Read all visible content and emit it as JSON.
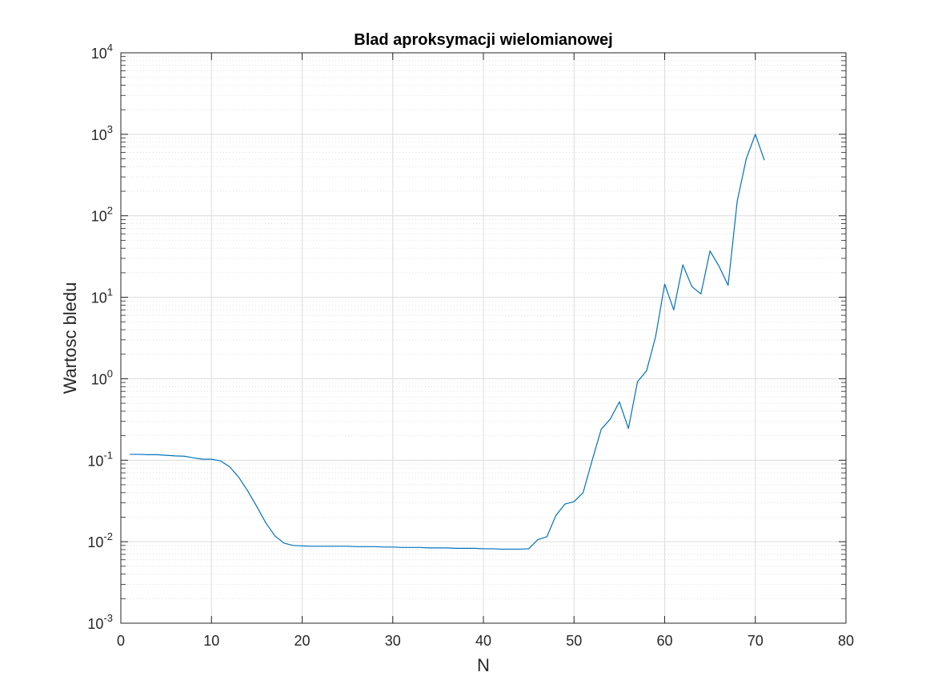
{
  "chart_data": {
    "type": "line",
    "title": "Blad aproksymacji wielomianowej",
    "xlabel": "N",
    "ylabel": "Wartosc bledu",
    "xlim": [
      0,
      80
    ],
    "ylim": [
      0.001,
      10000
    ],
    "yscale": "log",
    "grid": true,
    "minor_grid": true,
    "line_color": "#0072BD",
    "x_ticks": [
      {
        "value": 0,
        "label": "0"
      },
      {
        "value": 10,
        "label": "10"
      },
      {
        "value": 20,
        "label": "20"
      },
      {
        "value": 30,
        "label": "30"
      },
      {
        "value": 40,
        "label": "40"
      },
      {
        "value": 50,
        "label": "50"
      },
      {
        "value": 60,
        "label": "60"
      },
      {
        "value": 70,
        "label": "70"
      },
      {
        "value": 80,
        "label": "80"
      }
    ],
    "y_ticks": [
      {
        "value": 0.001,
        "base": "10",
        "exp": "-3"
      },
      {
        "value": 0.01,
        "base": "10",
        "exp": "-2"
      },
      {
        "value": 0.1,
        "base": "10",
        "exp": "-1"
      },
      {
        "value": 1,
        "base": "10",
        "exp": "0"
      },
      {
        "value": 10,
        "base": "10",
        "exp": "1"
      },
      {
        "value": 100,
        "base": "10",
        "exp": "2"
      },
      {
        "value": 1000,
        "base": "10",
        "exp": "3"
      },
      {
        "value": 10000,
        "base": "10",
        "exp": "4"
      }
    ],
    "series": [
      {
        "x": [
          1,
          2,
          3,
          4,
          5,
          6,
          7,
          8,
          9,
          10,
          11,
          12,
          13,
          14,
          15,
          16,
          17,
          18,
          19,
          20,
          21,
          22,
          23,
          24,
          25,
          26,
          27,
          28,
          29,
          30,
          31,
          32,
          33,
          34,
          35,
          36,
          37,
          38,
          39,
          40,
          41,
          42,
          43,
          44,
          45,
          46,
          47,
          48,
          49,
          50,
          51,
          52,
          53,
          54,
          55,
          56,
          57,
          58,
          59,
          60,
          61,
          62,
          63,
          64,
          65,
          66,
          67,
          68,
          69,
          70,
          71
        ],
        "y": [
          0.118,
          0.118,
          0.117,
          0.117,
          0.115,
          0.113,
          0.112,
          0.107,
          0.103,
          0.103,
          0.098,
          0.083,
          0.062,
          0.042,
          0.027,
          0.017,
          0.0118,
          0.0096,
          0.009,
          0.0089,
          0.0088,
          0.0088,
          0.0088,
          0.0088,
          0.0088,
          0.0087,
          0.0087,
          0.0087,
          0.0086,
          0.0086,
          0.0085,
          0.0085,
          0.0085,
          0.0084,
          0.0084,
          0.0084,
          0.0083,
          0.0083,
          0.0083,
          0.0082,
          0.0082,
          0.0081,
          0.0081,
          0.0081,
          0.0082,
          0.0106,
          0.0115,
          0.021,
          0.029,
          0.031,
          0.04,
          0.1,
          0.24,
          0.32,
          0.52,
          0.245,
          0.92,
          1.25,
          3.3,
          14.5,
          7.0,
          25.0,
          13.5,
          11.0,
          37.0,
          24.0,
          14.0,
          150.0,
          500.0,
          1000.0,
          480.0
        ]
      }
    ]
  }
}
